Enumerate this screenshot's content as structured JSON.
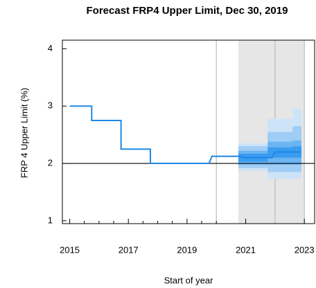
{
  "chart_data": {
    "type": "line",
    "title": "Forecast FRP4 Upper Limit, Dec 30, 2019",
    "xlabel": "Start of year",
    "ylabel": "FRP 4 Upper Limit (%)",
    "xlim": [
      2014.75,
      2023.35
    ],
    "ylim": [
      0.95,
      4.15
    ],
    "xticks": [
      2015,
      2017,
      2019,
      2021,
      2023
    ],
    "xminorticks": [
      2015.5,
      2016,
      2016.5,
      2017.5,
      2018,
      2018.5,
      2019.5,
      2020
    ],
    "yticks": [
      1,
      2,
      3,
      4
    ],
    "reference_y": 2,
    "forecast_shade": {
      "range": [
        2020.75,
        2023
      ],
      "color": "#e6e6e6"
    },
    "vlines": [
      2020,
      2022,
      2023
    ],
    "series": [
      {
        "name": "FRP4 Upper Limit",
        "color": "#1e88e5",
        "x": [
          2015,
          2015.75,
          2015.75,
          2016.75,
          2016.75,
          2017.75,
          2017.75,
          2019.75,
          2019.85,
          2020.75,
          2021.0,
          2021.9,
          2022.0,
          2022.9
        ],
        "values": [
          3,
          3,
          2.75,
          2.75,
          2.25,
          2.25,
          2,
          2,
          2.125,
          2.125,
          2.1,
          2.1,
          2.2,
          2.2
        ]
      }
    ],
    "fan": {
      "x": [
        2020.75,
        2021.75,
        2021.75,
        2022.6,
        2022.6,
        2022.9
      ],
      "bands": [
        {
          "color": "#cde3f8",
          "lower": [
            1.87,
            1.87,
            1.73,
            1.73,
            1.73,
            1.73
          ],
          "upper": [
            2.35,
            2.35,
            2.78,
            2.78,
            2.95,
            2.95
          ]
        },
        {
          "color": "#9fcdf5",
          "lower": [
            1.92,
            1.92,
            1.85,
            1.85,
            1.85,
            1.85
          ],
          "upper": [
            2.3,
            2.3,
            2.55,
            2.55,
            2.65,
            2.65
          ]
        },
        {
          "color": "#6bb5f3",
          "lower": [
            1.98,
            1.98,
            1.98,
            1.98,
            1.98,
            1.98
          ],
          "upper": [
            2.22,
            2.22,
            2.38,
            2.38,
            2.4,
            2.4
          ]
        },
        {
          "color": "#3a9cf0",
          "lower": [
            2.03,
            2.03,
            2.1,
            2.1,
            2.1,
            2.1
          ],
          "upper": [
            2.17,
            2.17,
            2.28,
            2.28,
            2.3,
            2.3
          ]
        }
      ]
    }
  }
}
